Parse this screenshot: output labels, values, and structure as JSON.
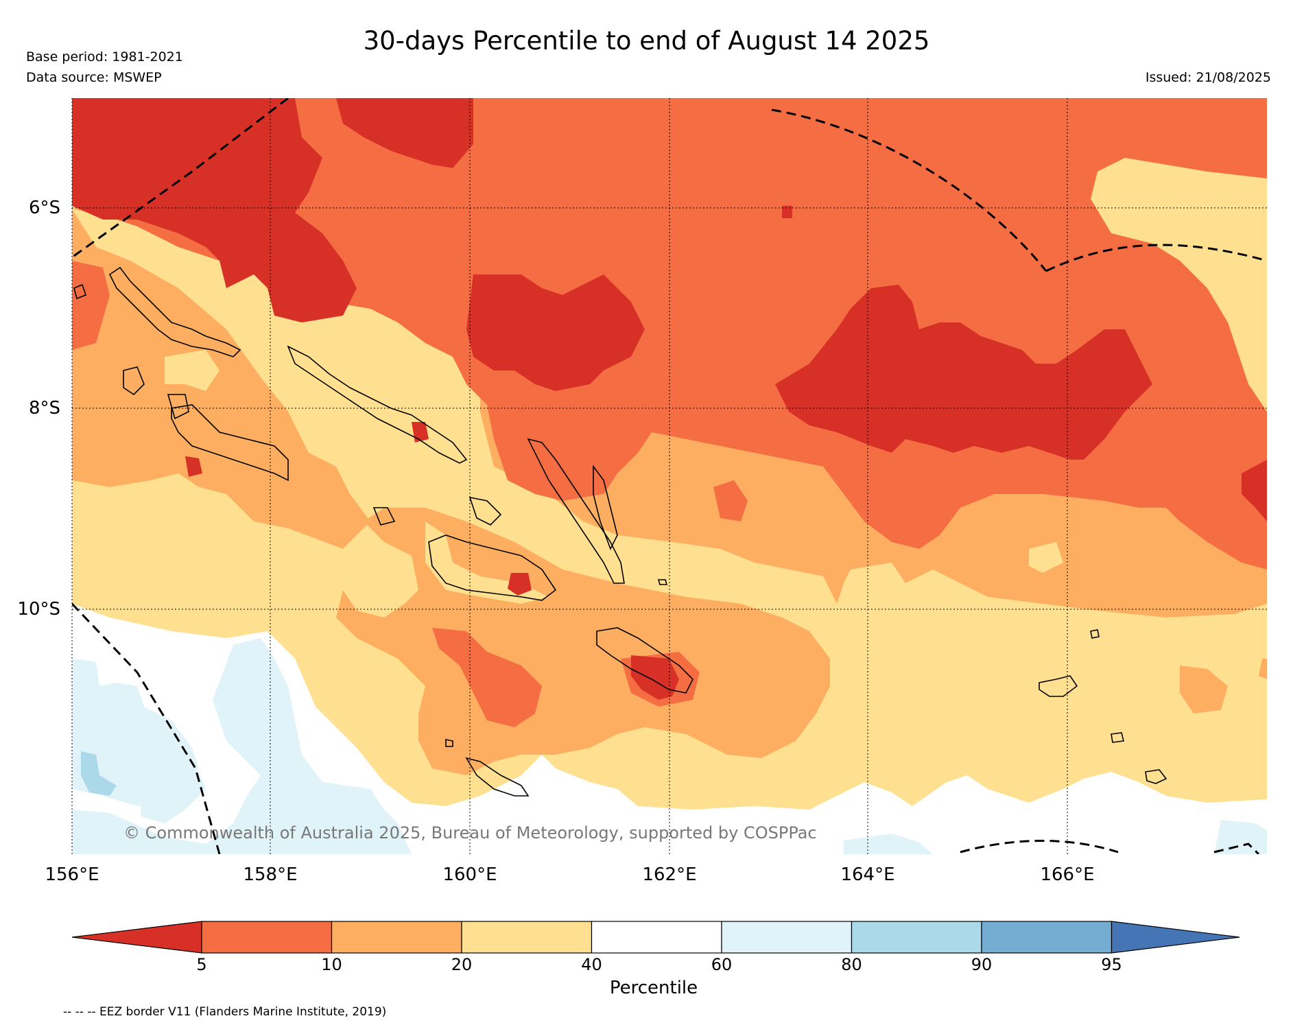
{
  "title": "30-days Percentile to end of August 14 2025",
  "meta": {
    "base_period": "Base period: 1981-2021",
    "data_source": "Data source: MSWEP",
    "issued": "Issued: 21/08/2025"
  },
  "map": {
    "lon_range": [
      156,
      168
    ],
    "lat_range": [
      -12.5,
      -5.0
    ],
    "x_ticks": [
      "156°E",
      "158°E",
      "160°E",
      "162°E",
      "164°E",
      "166°E"
    ],
    "y_ticks": [
      "6°S",
      "8°S",
      "10°S"
    ],
    "gridlines": true,
    "copyright": "© Commonwealth of Australia 2025, Bureau of Meteorology, supported by COSPPac"
  },
  "colorbar": {
    "label": "Percentile",
    "ticks": [
      "5",
      "10",
      "20",
      "40",
      "60",
      "80",
      "90",
      "95"
    ],
    "colors": {
      "below_5": "#d73027",
      "5_10": "#f46d43",
      "10_20": "#fdae61",
      "20_40": "#fee090",
      "40_60": "#ffffff",
      "60_80": "#e0f3f8",
      "80_90": "#abd9e9",
      "90_95": "#74add1",
      "above_95": "#4575b4"
    }
  },
  "legend_note": "-- -- -- EEZ border V11 (Flanders Marine Institute, 2019)"
}
